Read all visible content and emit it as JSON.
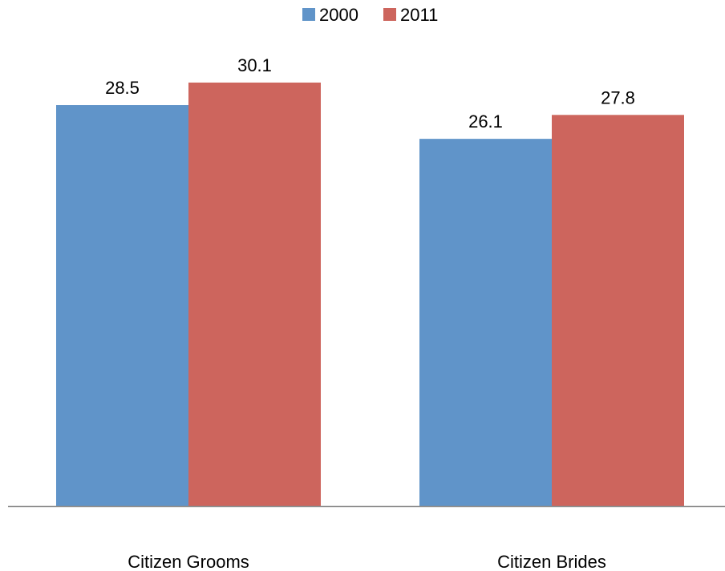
{
  "chart_data": {
    "type": "bar",
    "categories": [
      "Citizen Grooms",
      "Citizen Brides"
    ],
    "series": [
      {
        "name": "2000",
        "values": [
          28.5,
          26.1
        ],
        "color": "#6094c9"
      },
      {
        "name": "2011",
        "values": [
          30.1,
          27.8
        ],
        "color": "#cd655d"
      }
    ],
    "data_labels": [
      [
        "28.5",
        "26.1"
      ],
      [
        "30.1",
        "27.8"
      ]
    ],
    "ylim": [
      0,
      35
    ],
    "grid": false,
    "legend": {
      "position": "top-center"
    },
    "axis_color": "#898989"
  }
}
